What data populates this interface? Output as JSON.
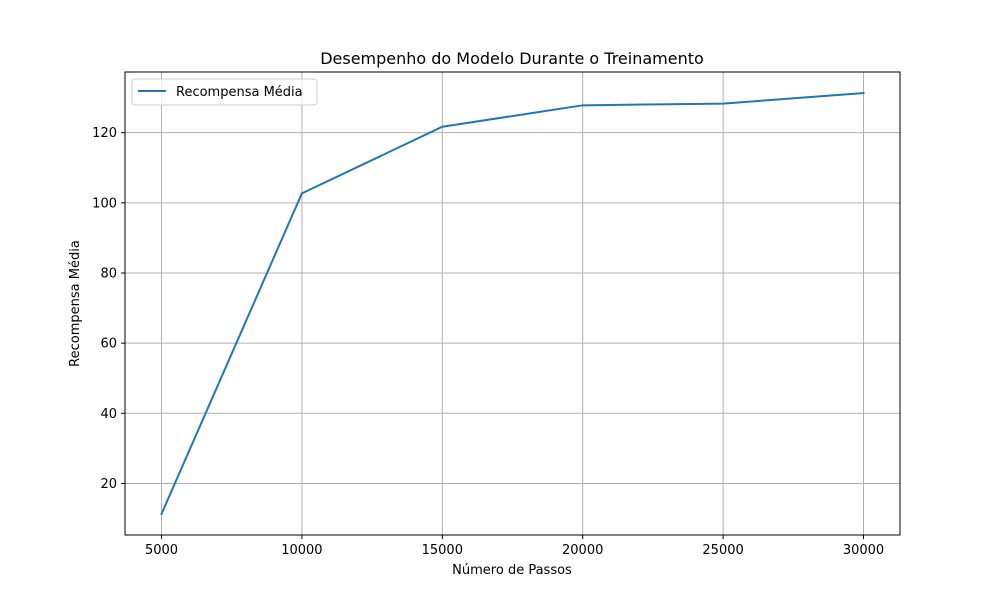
{
  "chart_data": {
    "type": "line",
    "title": "Desempenho do Modelo Durante o Treinamento",
    "xlabel": "Número de Passos",
    "ylabel": "Recompensa Média",
    "x": [
      5000,
      10000,
      15000,
      20000,
      25000,
      30000
    ],
    "series": [
      {
        "name": "Recompensa Média",
        "color": "#1f77b4",
        "values": [
          11.3,
          102.7,
          121.7,
          127.8,
          128.3,
          131.3
        ]
      }
    ],
    "xlim": [
      3700,
      31300
    ],
    "ylim": [
      5.3,
      137.3
    ],
    "xticks": [
      5000,
      10000,
      15000,
      20000,
      25000,
      30000
    ],
    "xtick_labels": [
      "5000",
      "10000",
      "15000",
      "20000",
      "25000",
      "30000"
    ],
    "yticks": [
      20,
      40,
      60,
      80,
      100,
      120
    ],
    "ytick_labels": [
      "20",
      "40",
      "60",
      "80",
      "100",
      "120"
    ],
    "grid": true,
    "legend": "upper-left"
  }
}
